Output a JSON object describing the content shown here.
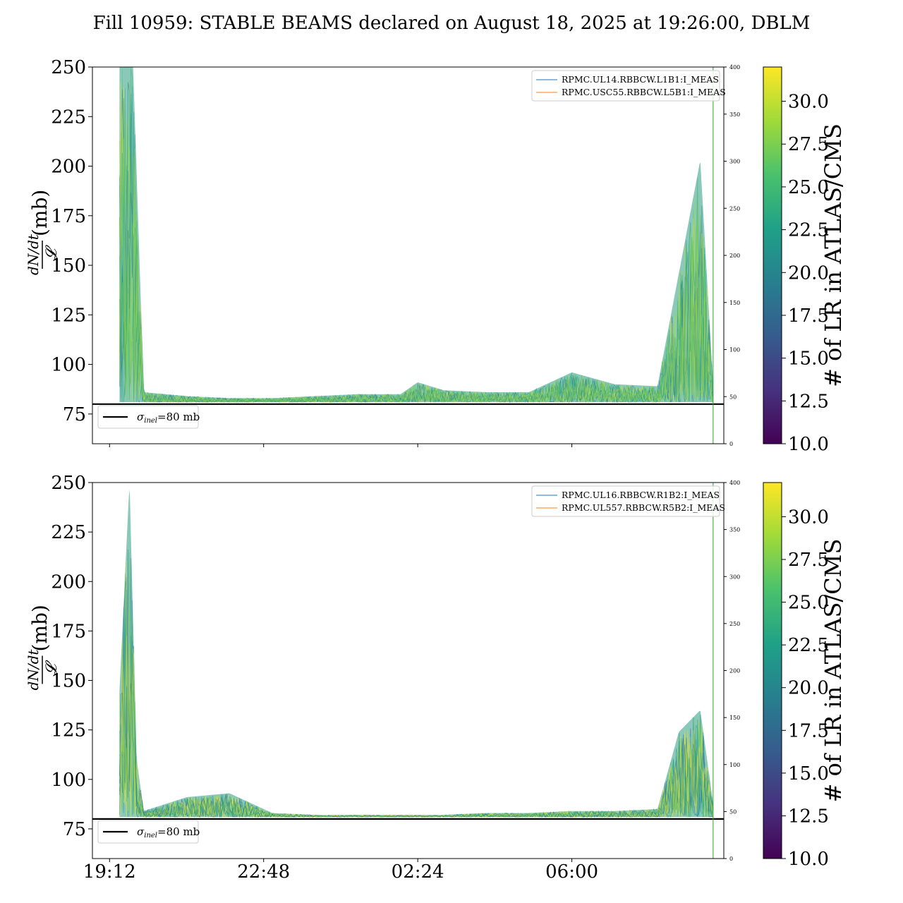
{
  "title": "Fill 10959: STABLE BEAMS declared on August 18, 2025 at 19:26:00, DBLM",
  "colormap": {
    "name": "viridis",
    "stops": [
      "#440154",
      "#46327e",
      "#365c8d",
      "#277f8e",
      "#1fa187",
      "#4ac16d",
      "#a0da39",
      "#fde725"
    ],
    "range": [
      10.0,
      32.0
    ],
    "ticks": [
      "10.0",
      "12.5",
      "15.0",
      "17.5",
      "20.0",
      "22.5",
      "25.0",
      "27.5",
      "30.0"
    ],
    "label": "# of LR in ATLAS/CMS"
  },
  "axis_text": {
    "ylabel_num": "dN/dt",
    "ylabel_den": "𝓛",
    "ylabel_unit": "(mb)",
    "sigma_legend": "=80 mb",
    "sigma_symbol": "σ",
    "sigma_sub": "inel"
  },
  "chart_data": [
    {
      "type": "area",
      "panel": "top",
      "ylim": [
        60,
        250
      ],
      "yticks": [
        75,
        100,
        125,
        150,
        175,
        200,
        225,
        250
      ],
      "right_ylim": [
        0,
        400
      ],
      "right_yticks": [
        0,
        50,
        100,
        150,
        200,
        250,
        300,
        350,
        400
      ],
      "xlim_hours": [
        18.8,
        33.55
      ],
      "xticks": [
        "19:12",
        "22:48",
        "02:24",
        "06:00"
      ],
      "xtick_labels_shown": false,
      "reference_line": {
        "y": 80,
        "label": "σinel=80 mb"
      },
      "legend": [
        "RPMC.UL14.RBBCW.L1B1:I_MEAS",
        "RPMC.USC55.RBBCW.L5B1:I_MEAS"
      ],
      "legend_colors": [
        "#1f77b4",
        "#ff7f0e"
      ],
      "vertical_marker_hour": 33.3,
      "envelope": {
        "time": [
          "19:26",
          "19:27",
          "19:45",
          "20:00",
          "21:00",
          "22:00",
          "23:00",
          "00:00",
          "01:00",
          "02:00",
          "02:24",
          "03:00",
          "04:00",
          "05:00",
          "06:00",
          "07:00",
          "08:00",
          "08:30",
          "09:00",
          "09:18"
        ],
        "max": [
          250,
          250,
          250,
          86,
          84,
          83,
          83,
          84,
          85,
          85,
          91,
          87,
          86,
          86,
          96,
          90,
          89,
          146,
          203,
          90
        ],
        "min": [
          81,
          81,
          81,
          81,
          81,
          81,
          81,
          81,
          81,
          81,
          81,
          81,
          81,
          81,
          81,
          81,
          81,
          81,
          81,
          81
        ]
      }
    },
    {
      "type": "area",
      "panel": "bottom",
      "ylim": [
        60,
        250
      ],
      "yticks": [
        75,
        100,
        125,
        150,
        175,
        200,
        225,
        250
      ],
      "right_ylim": [
        0,
        400
      ],
      "right_yticks": [
        0,
        50,
        100,
        150,
        200,
        250,
        300,
        350,
        400
      ],
      "xlim_hours": [
        18.8,
        33.55
      ],
      "xticks": [
        "19:12",
        "22:48",
        "02:24",
        "06:00"
      ],
      "xtick_labels_shown": true,
      "reference_line": {
        "y": 80,
        "label": "σinel=80 mb"
      },
      "legend": [
        "RPMC.UL16.RBBCW.R1B2:I_MEAS",
        "RPMC.UL557.RBBCW.R5B2:I_MEAS"
      ],
      "legend_colors": [
        "#1f77b4",
        "#ff7f0e"
      ],
      "vertical_marker_hour": 33.3,
      "envelope": {
        "time": [
          "19:26",
          "19:40",
          "19:50",
          "20:00",
          "21:00",
          "22:00",
          "23:00",
          "00:00",
          "01:00",
          "02:00",
          "03:00",
          "04:00",
          "05:00",
          "06:00",
          "07:00",
          "08:00",
          "08:30",
          "09:00",
          "09:18"
        ],
        "max": [
          145,
          250,
          110,
          84,
          91,
          93,
          83,
          82,
          82,
          82,
          82,
          83,
          83,
          84,
          84,
          85,
          124,
          135,
          88
        ],
        "min": [
          81,
          81,
          81,
          81,
          81,
          81,
          81,
          81,
          81,
          81,
          81,
          81,
          81,
          81,
          81,
          81,
          81,
          81,
          81
        ]
      }
    }
  ]
}
